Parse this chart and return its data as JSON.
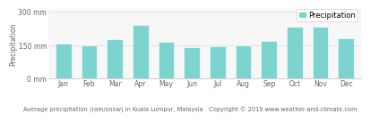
{
  "months": [
    "Jan",
    "Feb",
    "Mar",
    "Apr",
    "May",
    "Jun",
    "Jul",
    "Aug",
    "Sep",
    "Oct",
    "Nov",
    "Dec"
  ],
  "values": [
    158,
    150,
    178,
    243,
    165,
    143,
    144,
    151,
    168,
    233,
    235,
    183
  ],
  "bar_color": "#7dd4cf",
  "bar_edge_color": "#7dd4cf",
  "ytick_labels": [
    "0 mm",
    "150 mm",
    "300 mm"
  ],
  "ytick_values": [
    0,
    150,
    300
  ],
  "ylim": [
    0,
    315
  ],
  "ylabel": "Precipitation",
  "title": "Average precipitation (rain/snow) in Kuala Lumpur, Malaysia   Copyright © 2019 www.weather-and-climate.com",
  "legend_label": "Precipitation",
  "legend_color": "#7dd4cf",
  "bg_color": "#f7f7f7",
  "grid_color": "#d8d8d8",
  "title_fontsize": 4.8,
  "axis_label_fontsize": 5.5,
  "tick_fontsize": 5.5,
  "legend_fontsize": 6.0
}
